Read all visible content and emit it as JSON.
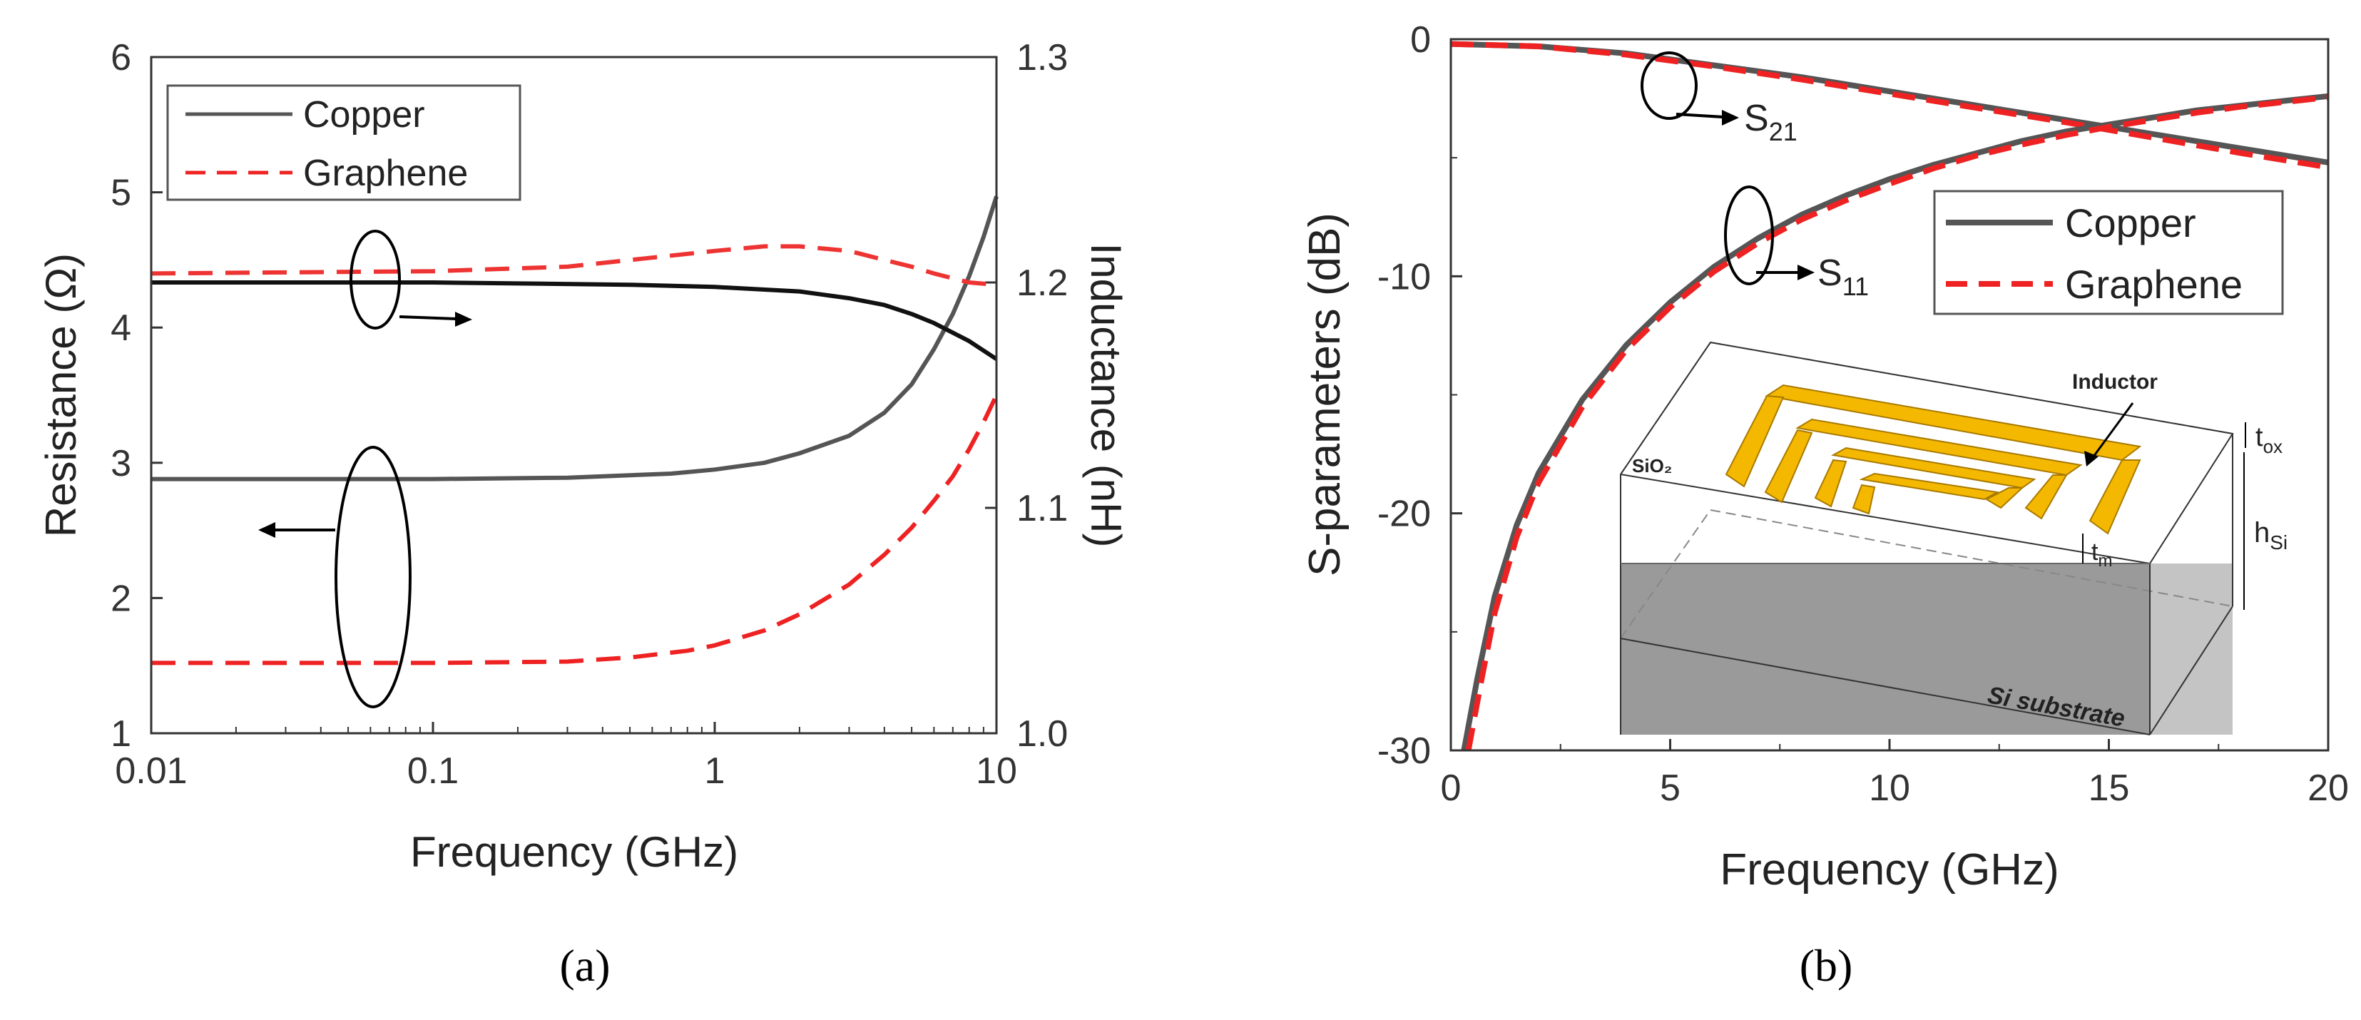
{
  "chart_data": [
    {
      "panel": "a",
      "type": "line",
      "caption": "(a)",
      "xlabel": "Frequency (GHz)",
      "ylabel": "Resistance (Ω)",
      "y2label": "Inductance (nH)",
      "xscale": "log",
      "xlim": [
        0.01,
        10
      ],
      "ylim": [
        1,
        6
      ],
      "y2lim": [
        1.0,
        1.3
      ],
      "xticks": [
        "0.01",
        "0.1",
        "1",
        "10"
      ],
      "yticks": [
        "1",
        "2",
        "3",
        "4",
        "5",
        "6"
      ],
      "y2ticks": [
        "1.0",
        "1.1",
        "1.2",
        "1.3"
      ],
      "legend": {
        "position": "top-left",
        "entries": [
          "Copper",
          "Graphene"
        ]
      },
      "series": [
        {
          "name": "Copper",
          "quantity": "resistance",
          "axis": "left",
          "color": "#555555",
          "style": "solid",
          "x": [
            0.01,
            0.03,
            0.1,
            0.3,
            0.7,
            1.0,
            1.5,
            2.0,
            3.0,
            4.0,
            5.0,
            6.0,
            7.0,
            8.0,
            9.0,
            10.0
          ],
          "y": [
            2.88,
            2.88,
            2.88,
            2.89,
            2.92,
            2.95,
            3.0,
            3.07,
            3.2,
            3.37,
            3.58,
            3.84,
            4.1,
            4.38,
            4.67,
            4.97
          ]
        },
        {
          "name": "Graphene",
          "quantity": "resistance",
          "axis": "left",
          "color": "#ee2222",
          "style": "dashed",
          "x": [
            0.01,
            0.1,
            0.3,
            0.5,
            0.8,
            1.0,
            1.5,
            2.0,
            3.0,
            4.0,
            5.0,
            6.0,
            7.0,
            8.0,
            9.0,
            10.0
          ],
          "y": [
            1.52,
            1.52,
            1.53,
            1.56,
            1.61,
            1.65,
            1.76,
            1.88,
            2.1,
            2.32,
            2.52,
            2.72,
            2.9,
            3.1,
            3.3,
            3.5
          ]
        },
        {
          "name": "Copper",
          "quantity": "inductance",
          "axis": "right",
          "color": "#111111",
          "style": "solid",
          "x": [
            0.01,
            0.1,
            0.5,
            1.0,
            2.0,
            3.0,
            4.0,
            5.0,
            6.0,
            8.0,
            10.0
          ],
          "y": [
            1.2,
            1.2,
            1.199,
            1.198,
            1.196,
            1.193,
            1.19,
            1.186,
            1.182,
            1.174,
            1.166
          ]
        },
        {
          "name": "Graphene",
          "quantity": "inductance",
          "axis": "right",
          "color": "#ee3333",
          "style": "dashed",
          "x": [
            0.01,
            0.1,
            0.3,
            0.6,
            1.0,
            1.5,
            2.0,
            3.0,
            4.0,
            5.0,
            6.0,
            8.0,
            10.0
          ],
          "y": [
            1.204,
            1.205,
            1.207,
            1.211,
            1.214,
            1.216,
            1.216,
            1.214,
            1.21,
            1.207,
            1.204,
            1.2,
            1.199
          ]
        }
      ]
    },
    {
      "panel": "b",
      "type": "line",
      "caption": "(b)",
      "xlabel": "Frequency (GHz)",
      "ylabel": "S-parameters (dB)",
      "xlim": [
        0,
        20
      ],
      "ylim": [
        -30,
        0
      ],
      "xticks": [
        "0",
        "5",
        "10",
        "15",
        "20"
      ],
      "yticks": [
        "0",
        "-10",
        "-20",
        "-30"
      ],
      "legend": {
        "position": "right",
        "entries": [
          "Copper",
          "Graphene"
        ]
      },
      "annotations": [
        {
          "base": "S",
          "sub": "21"
        },
        {
          "base": "S",
          "sub": "11"
        }
      ],
      "inset": {
        "labels": [
          "Inductor",
          "SiO₂",
          "Si substrate"
        ],
        "dims": [
          {
            "base": "t",
            "sub": "ox"
          },
          {
            "base": "t",
            "sub": "m"
          },
          {
            "base": "h",
            "sub": "Si"
          }
        ]
      },
      "series": [
        {
          "name": "Copper S21",
          "color": "#555555",
          "style": "solid",
          "x": [
            0,
            2,
            4,
            6,
            8,
            10,
            12,
            14,
            16,
            18,
            20
          ],
          "y": [
            -0.2,
            -0.3,
            -0.6,
            -1.1,
            -1.6,
            -2.2,
            -2.8,
            -3.4,
            -4.0,
            -4.6,
            -5.2
          ]
        },
        {
          "name": "Graphene S21",
          "color": "#ee2222",
          "style": "dashed",
          "x": [
            0,
            2,
            4,
            6,
            8,
            10,
            12,
            14,
            16,
            18,
            20
          ],
          "y": [
            -0.2,
            -0.3,
            -0.65,
            -1.15,
            -1.7,
            -2.3,
            -2.9,
            -3.5,
            -4.15,
            -4.8,
            -5.4
          ]
        },
        {
          "name": "Copper S11",
          "color": "#555555",
          "style": "solid",
          "x": [
            0.3,
            0.6,
            1,
            1.5,
            2,
            3,
            4,
            5,
            6,
            7,
            8,
            9,
            10,
            11,
            12,
            13,
            14,
            15,
            16,
            17,
            18,
            19,
            20
          ],
          "y": [
            -30,
            -27,
            -23.5,
            -20.5,
            -18.3,
            -15.2,
            -12.9,
            -11.1,
            -9.6,
            -8.4,
            -7.4,
            -6.6,
            -5.9,
            -5.3,
            -4.8,
            -4.3,
            -3.9,
            -3.6,
            -3.3,
            -3.0,
            -2.8,
            -2.6,
            -2.4
          ]
        },
        {
          "name": "Graphene S11",
          "color": "#ee2222",
          "style": "dashed",
          "x": [
            0.4,
            0.7,
            1,
            1.5,
            2,
            3,
            4,
            5,
            6,
            7,
            8,
            9,
            10,
            11,
            12,
            13,
            14,
            15,
            16,
            17,
            18,
            19,
            20
          ],
          "y": [
            -30,
            -27,
            -24.2,
            -21,
            -18.7,
            -15.5,
            -13.1,
            -11.3,
            -9.8,
            -8.6,
            -7.6,
            -6.8,
            -6.1,
            -5.45,
            -4.9,
            -4.45,
            -4.05,
            -3.7,
            -3.4,
            -3.1,
            -2.85,
            -2.65,
            -2.45
          ]
        }
      ]
    }
  ]
}
